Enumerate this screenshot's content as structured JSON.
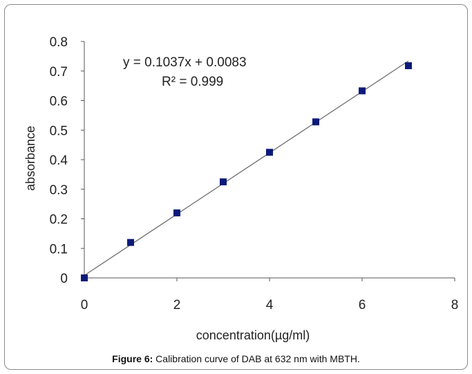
{
  "caption": {
    "label": "Figure 6:",
    "text": " Calibration curve of DAB at 632 nm with MBTH."
  },
  "chart_data": {
    "type": "scatter",
    "xlabel": "concentration(µg/ml)",
    "ylabel": "absorbance",
    "xlim": [
      0,
      8
    ],
    "ylim": [
      0,
      0.8
    ],
    "xticks": [
      0,
      2,
      4,
      6,
      8
    ],
    "yticks": [
      0,
      0.1,
      0.2,
      0.3,
      0.4,
      0.5,
      0.6,
      0.7,
      0.8
    ],
    "grid": false,
    "series": [
      {
        "x": [
          0,
          1,
          2,
          3,
          4,
          5,
          6,
          7
        ],
        "y": [
          0,
          0.12,
          0.22,
          0.325,
          0.425,
          0.528,
          0.633,
          0.718
        ],
        "marker": "square",
        "color": "#0b1a7a"
      }
    ],
    "trendline": {
      "slope": 0.1037,
      "intercept": 0.0083,
      "x_range": [
        0,
        7
      ],
      "color": "#6e6e6e",
      "equation": "y = 0.1037x  + 0.0083",
      "r_squared": "R² = 0.999"
    }
  }
}
